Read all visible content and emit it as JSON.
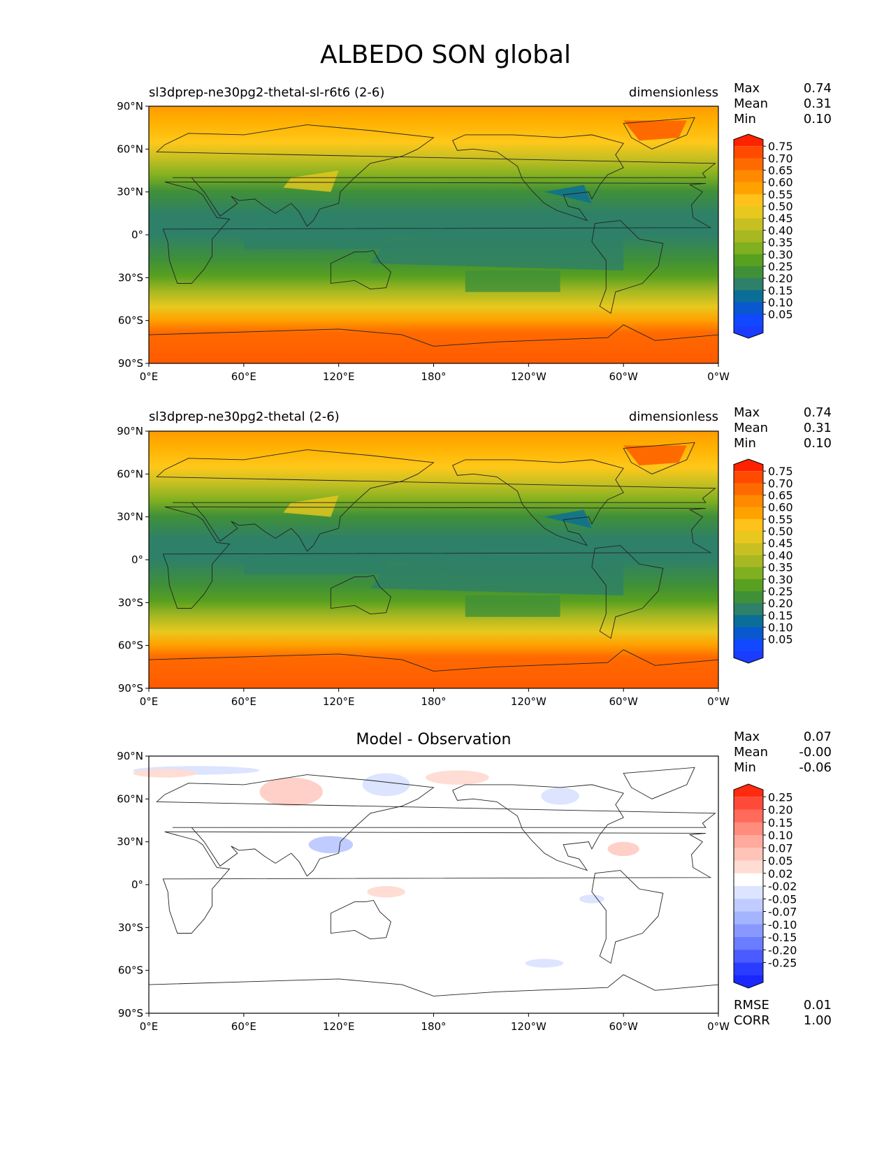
{
  "title": "ALBEDO SON global",
  "x_ticks": [
    "0°E",
    "60°E",
    "120°E",
    "180°",
    "120°W",
    "60°W",
    "0°W"
  ],
  "y_ticks": [
    "90°N",
    "60°N",
    "30°N",
    "0°",
    "30°S",
    "60°S",
    "90°S"
  ],
  "panels": [
    {
      "left_title": "sl3dprep-ne30pg2-thetal-sl-r6t6 (2-6)",
      "right_title": "dimensionless",
      "center_title": "",
      "stats": [
        {
          "label": "Max",
          "value": "0.74"
        },
        {
          "label": "Mean",
          "value": "0.31"
        },
        {
          "label": "Min",
          "value": "0.10"
        }
      ],
      "colorbar": {
        "labels": [
          "0.75",
          "0.70",
          "0.65",
          "0.60",
          "0.55",
          "0.50",
          "0.45",
          "0.40",
          "0.35",
          "0.30",
          "0.25",
          "0.20",
          "0.15",
          "0.10",
          "0.05"
        ],
        "colors": [
          "#ff2200",
          "#ff4a00",
          "#ff6a00",
          "#ff8a00",
          "#ffa200",
          "#ffc21a",
          "#e8c81e",
          "#c8c022",
          "#a8b822",
          "#80b020",
          "#58a020",
          "#409038",
          "#2e8068",
          "#0a6e98",
          "#0a58d0",
          "#1248ff",
          "#1a3cff"
        ]
      }
    },
    {
      "left_title": "sl3dprep-ne30pg2-thetal (2-6)",
      "right_title": "dimensionless",
      "center_title": "",
      "stats": [
        {
          "label": "Max",
          "value": "0.74"
        },
        {
          "label": "Mean",
          "value": "0.31"
        },
        {
          "label": "Min",
          "value": "0.10"
        }
      ],
      "colorbar": {
        "labels": [
          "0.75",
          "0.70",
          "0.65",
          "0.60",
          "0.55",
          "0.50",
          "0.45",
          "0.40",
          "0.35",
          "0.30",
          "0.25",
          "0.20",
          "0.15",
          "0.10",
          "0.05"
        ],
        "colors": [
          "#ff2200",
          "#ff4a00",
          "#ff6a00",
          "#ff8a00",
          "#ffa200",
          "#ffc21a",
          "#e8c81e",
          "#c8c022",
          "#a8b822",
          "#80b020",
          "#58a020",
          "#409038",
          "#2e8068",
          "#0a6e98",
          "#0a58d0",
          "#1248ff",
          "#1a3cff"
        ]
      }
    },
    {
      "left_title": "",
      "right_title": "",
      "center_title": "Model - Observation",
      "stats": [
        {
          "label": "Max",
          "value": "0.07"
        },
        {
          "label": "Mean",
          "value": "-0.00"
        },
        {
          "label": "Min",
          "value": "-0.06"
        }
      ],
      "bottom_stats": [
        {
          "label": "RMSE",
          "value": "0.01"
        },
        {
          "label": "CORR",
          "value": "1.00"
        }
      ],
      "colorbar": {
        "labels": [
          "0.25",
          "0.20",
          "0.15",
          "0.10",
          "0.07",
          "0.05",
          "0.02",
          "-0.02",
          "-0.05",
          "-0.07",
          "-0.10",
          "-0.15",
          "-0.20",
          "-0.25"
        ],
        "colors": [
          "#ff2a10",
          "#ff4a3a",
          "#ff6a5a",
          "#ff8c7c",
          "#ffaa9c",
          "#ffc4b8",
          "#ffdcd4",
          "#ffffff",
          "#dce4ff",
          "#c0ccff",
          "#a4b4ff",
          "#8898ff",
          "#6a7cff",
          "#4a5cff",
          "#2a3cff",
          "#1a28ff"
        ]
      }
    }
  ]
}
